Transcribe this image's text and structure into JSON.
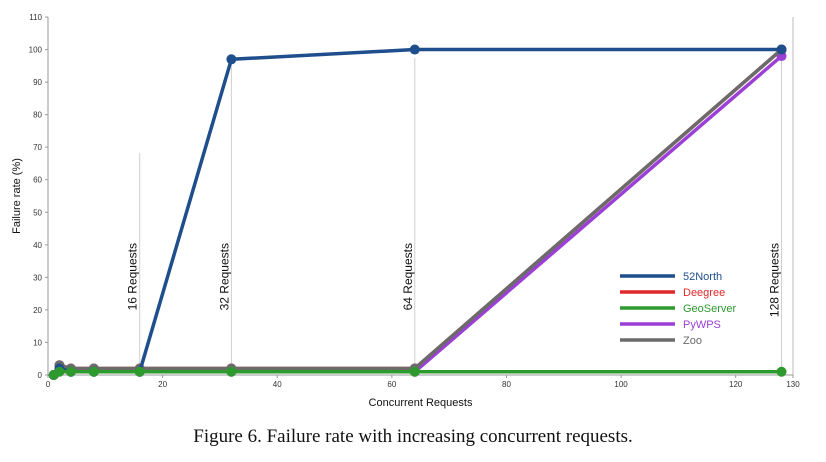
{
  "caption": "Figure 6. Failure rate with increasing concurrent requests.",
  "chart_data": {
    "type": "line",
    "xlabel": "Concurrent Requests",
    "ylabel": "Failure rate (%)",
    "xlim": [
      0,
      130
    ],
    "ylim": [
      0,
      110
    ],
    "x_ticks": [
      0,
      20,
      40,
      60,
      80,
      100,
      120,
      130
    ],
    "y_ticks": [
      0,
      10,
      20,
      30,
      40,
      50,
      60,
      70,
      80,
      90,
      100,
      110
    ],
    "grid": false,
    "legend_position": "bottom-right",
    "annotations": [
      {
        "text": "16 Requests",
        "x": 16
      },
      {
        "text": "32 Requests",
        "x": 32
      },
      {
        "text": "64 Requests",
        "x": 64
      },
      {
        "text": "128 Requests",
        "x": 128
      }
    ],
    "x": [
      1,
      2,
      4,
      8,
      16,
      32,
      64,
      128
    ],
    "series": [
      {
        "name": "52North",
        "color": "#1f4e8c",
        "values": [
          0,
          2,
          1,
          1,
          1,
          97,
          100,
          100
        ]
      },
      {
        "name": "Deegree",
        "color": "#e0292b",
        "values": [
          0,
          3,
          2,
          2,
          2,
          2,
          2,
          100
        ]
      },
      {
        "name": "GeoServer",
        "color": "#2e9a2e",
        "values": [
          0,
          1,
          1,
          1,
          1,
          1,
          1,
          1
        ]
      },
      {
        "name": "PyWPS",
        "color": "#9b3fd6",
        "values": [
          0,
          2,
          1,
          1,
          1,
          1,
          1,
          98
        ]
      },
      {
        "name": "Zoo",
        "color": "#6b6b6b",
        "values": [
          0,
          3,
          2,
          2,
          2,
          2,
          2,
          100
        ]
      }
    ],
    "draw_order": [
      "Deegree",
      "PyWPS",
      "Zoo",
      "52North",
      "GeoServer"
    ]
  }
}
